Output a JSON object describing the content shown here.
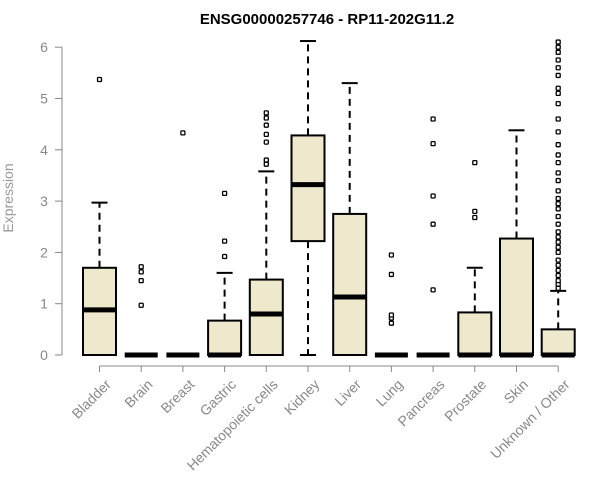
{
  "chart_data": {
    "type": "boxplot",
    "title": "ENSG00000257746 - RP11-202G11.2",
    "xlabel": "",
    "ylabel": "Expression",
    "ylim": [
      0,
      6.2
    ],
    "yticks": [
      0,
      1,
      2,
      3,
      4,
      5,
      6
    ],
    "box_fill": "#EEE8CD",
    "box_stroke": "#000000",
    "axis_color": "#888888",
    "grid": false,
    "categories": [
      "Bladder",
      "Brain",
      "Breast",
      "Gastric",
      "Hematopoietic cells",
      "Kidney",
      "Liver",
      "Lung",
      "Pancreas",
      "Prostate",
      "Skin",
      "Unknown / Other"
    ],
    "boxes": [
      {
        "category": "Bladder",
        "min": 0,
        "q1": 0,
        "median": 0.88,
        "q3": 1.7,
        "max": 2.97,
        "outliers": [
          5.37
        ]
      },
      {
        "category": "Brain",
        "min": 0,
        "q1": 0,
        "median": 0,
        "q3": 0,
        "max": 0,
        "outliers": [
          0.97,
          1.45,
          1.62,
          1.72
        ]
      },
      {
        "category": "Breast",
        "min": 0,
        "q1": 0,
        "median": 0,
        "q3": 0,
        "max": 0,
        "outliers": [
          4.33
        ]
      },
      {
        "category": "Gastric",
        "min": 0,
        "q1": 0,
        "median": 0,
        "q3": 0.67,
        "max": 1.6,
        "outliers": [
          1.92,
          2.22,
          3.15
        ]
      },
      {
        "category": "Hematopoietic cells",
        "min": 0,
        "q1": 0,
        "median": 0.8,
        "q3": 1.47,
        "max": 3.58,
        "outliers": [
          3.72,
          3.8,
          4.15,
          4.3,
          4.48,
          4.62,
          4.72
        ]
      },
      {
        "category": "Kidney",
        "min": 0,
        "q1": 2.22,
        "median": 3.32,
        "q3": 4.28,
        "max": 6.12,
        "outliers": []
      },
      {
        "category": "Liver",
        "min": 0,
        "q1": 0,
        "median": 1.13,
        "q3": 2.75,
        "max": 5.3,
        "outliers": []
      },
      {
        "category": "Lung",
        "min": 0,
        "q1": 0,
        "median": 0,
        "q3": 0,
        "max": 0,
        "outliers": [
          0.62,
          0.72,
          0.78,
          1.57,
          1.95
        ]
      },
      {
        "category": "Pancreas",
        "min": 0,
        "q1": 0,
        "median": 0,
        "q3": 0,
        "max": 0,
        "outliers": [
          1.27,
          2.55,
          3.1,
          4.12,
          4.6
        ]
      },
      {
        "category": "Prostate",
        "min": 0,
        "q1": 0,
        "median": 0,
        "q3": 0.83,
        "max": 1.7,
        "outliers": [
          2.68,
          2.8,
          3.75
        ]
      },
      {
        "category": "Skin",
        "min": 0,
        "q1": 0,
        "median": 0,
        "q3": 2.27,
        "max": 4.38,
        "outliers": []
      },
      {
        "category": "Unknown / Other",
        "min": 0,
        "q1": 0,
        "median": 0,
        "q3": 0.5,
        "max": 1.25,
        "outliers": [
          1.3,
          1.38,
          1.45,
          1.55,
          1.65,
          1.75,
          1.85,
          2.0,
          2.1,
          2.2,
          2.3,
          2.4,
          2.55,
          2.7,
          2.85,
          2.95,
          3.05,
          3.2,
          3.4,
          3.55,
          3.75,
          3.9,
          4.1,
          4.35,
          4.6,
          4.9,
          5.1,
          5.2,
          5.45,
          5.6,
          5.75,
          5.9,
          6.0,
          6.1
        ]
      }
    ]
  }
}
